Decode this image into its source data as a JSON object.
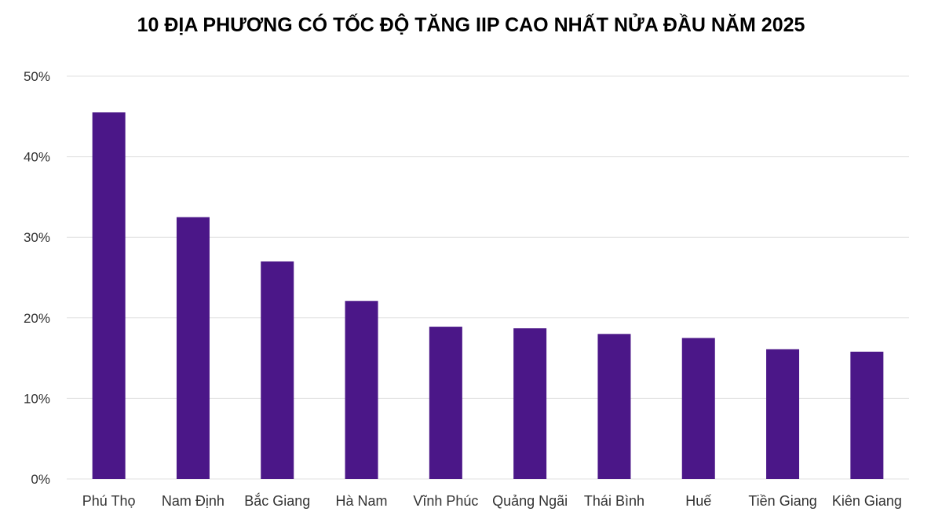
{
  "chart_data": {
    "type": "bar",
    "title": "10 ĐỊA PHƯƠNG CÓ TỐC ĐỘ TĂNG IIP CAO NHẤT NỬA ĐẦU NĂM 2025",
    "categories": [
      "Phú Thọ",
      "Nam Định",
      "Bắc Giang",
      "Hà Nam",
      "Vĩnh Phúc",
      "Quảng Ngãi",
      "Thái Bình",
      "Huế",
      "Tiền Giang",
      "Kiên Giang"
    ],
    "values": [
      45.5,
      32.5,
      27.0,
      22.1,
      18.9,
      18.7,
      18.0,
      17.5,
      16.1,
      15.8
    ],
    "ylim": [
      0,
      50
    ],
    "yticks": [
      0,
      10,
      20,
      30,
      40,
      50
    ],
    "ytick_labels": [
      "0%",
      "10%",
      "20%",
      "30%",
      "40%",
      "50%"
    ],
    "xlabel": "",
    "ylabel": "",
    "grid": true,
    "legend": "none",
    "colors": {
      "bar": "#4b1788",
      "grid": "#e0e0e0",
      "text": "#333333"
    }
  }
}
